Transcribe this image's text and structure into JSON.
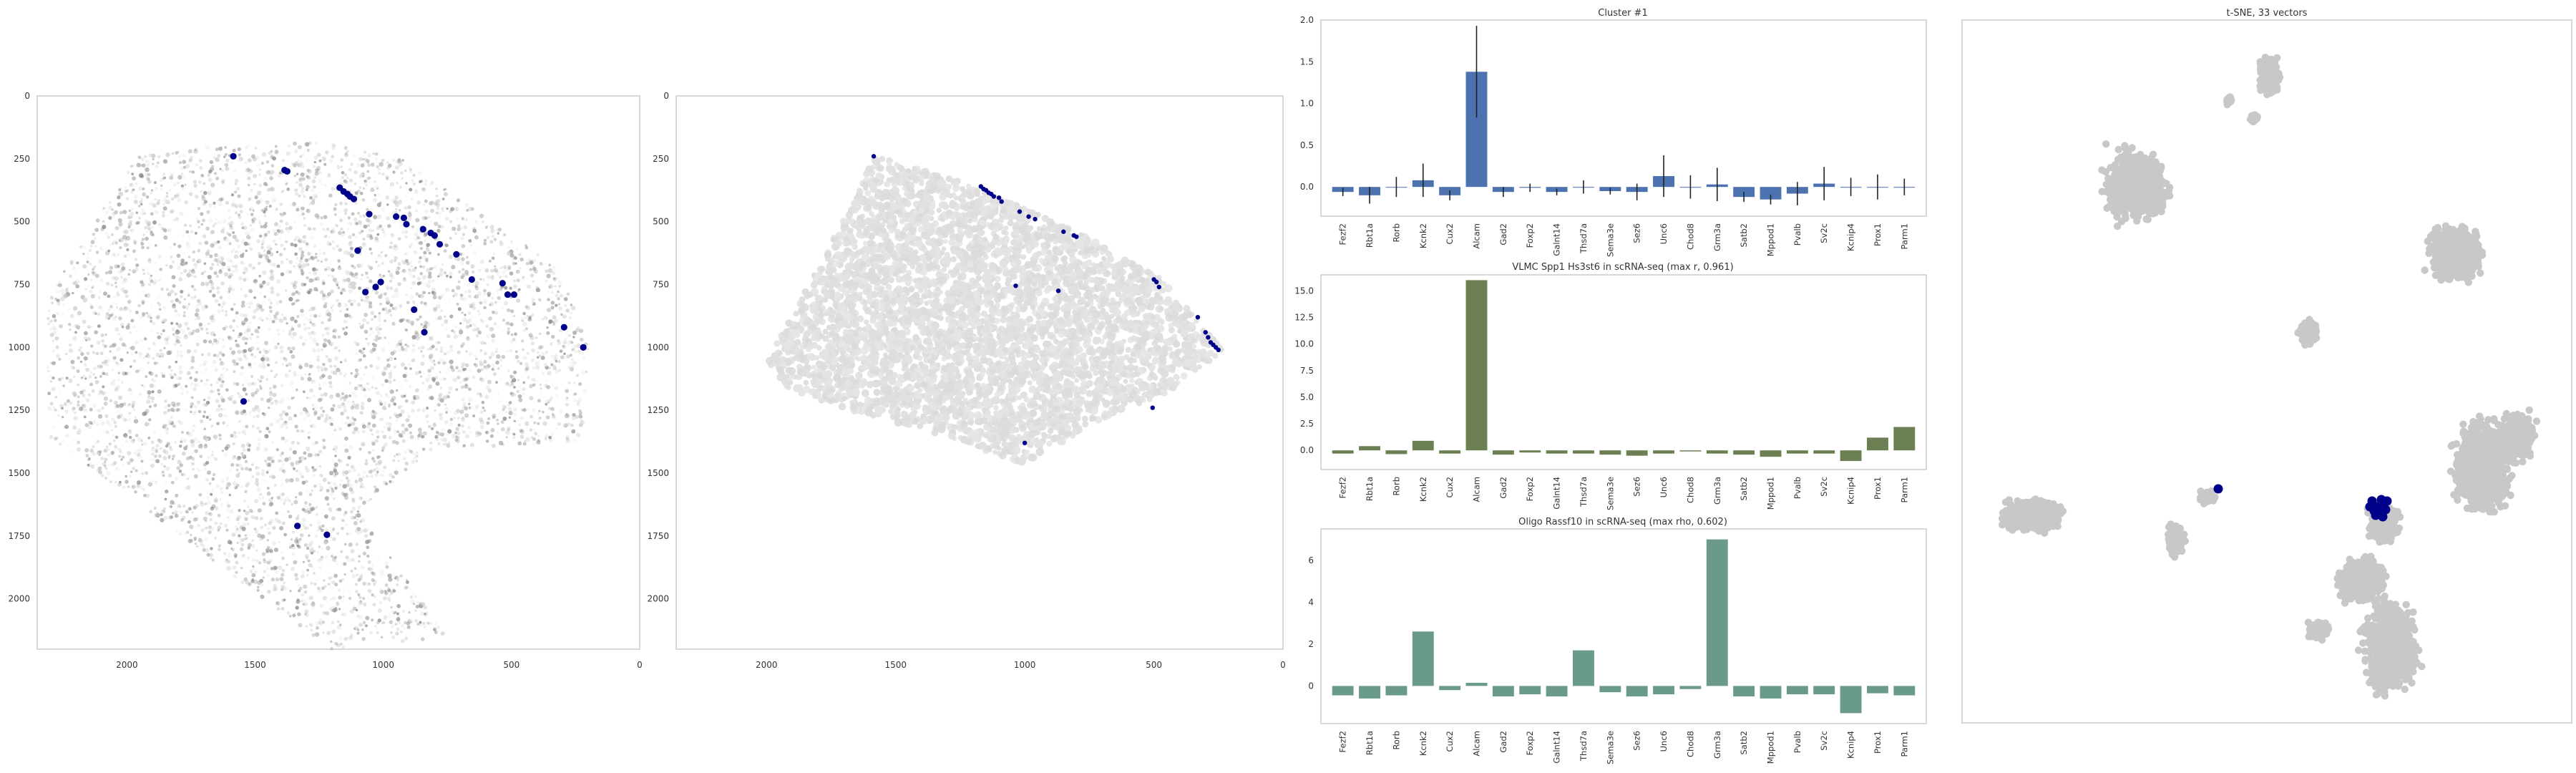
{
  "colors": {
    "highlight": "#00008b",
    "bar_cluster": "#4c72b0",
    "bar_vlmc": "#6b7f52",
    "bar_oligo": "#6a9a8a",
    "background_points": "#c8c8c8",
    "frame": "#cccccc"
  },
  "chart_data": [
    {
      "type": "scatter",
      "panel": "spatial-a",
      "title": "",
      "xlim": [
        2350,
        0
      ],
      "ylim": [
        2200,
        0
      ],
      "x_ticks": [
        "2000",
        "1500",
        "1000",
        "500",
        "0"
      ],
      "y_ticks": [
        "0",
        "250",
        "500",
        "750",
        "1000",
        "1250",
        "1500",
        "1750",
        "2000"
      ],
      "grid": false,
      "highlighted_points": {
        "x": [
          1585,
          1385,
          1375,
          1170,
          1155,
          1140,
          1130,
          1115,
          1100,
          1055,
          950,
          920,
          910,
          845,
          815,
          800,
          780,
          715,
          655,
          535,
          515,
          490,
          295,
          220,
          1545,
          1030,
          1010,
          1070,
          840,
          880,
          1335,
          1220
        ],
        "y": [
          240,
          295,
          300,
          365,
          380,
          390,
          400,
          410,
          615,
          470,
          480,
          485,
          510,
          530,
          545,
          555,
          590,
          630,
          730,
          745,
          790,
          790,
          920,
          1000,
          1215,
          760,
          740,
          780,
          940,
          850,
          1710,
          1745
        ]
      }
    },
    {
      "type": "scatter",
      "panel": "spatial-b",
      "title": "",
      "xlim": [
        2350,
        0
      ],
      "ylim": [
        2200,
        0
      ],
      "x_ticks": [
        "2000",
        "1500",
        "1000",
        "500",
        "0"
      ],
      "y_ticks": [
        "0",
        "250",
        "500",
        "750",
        "1000",
        "1250",
        "1500",
        "1750",
        "2000"
      ],
      "grid": false,
      "highlighted_points": {
        "x": [
          1585,
          1170,
          1160,
          1150,
          1140,
          1130,
          1120,
          1100,
          1090,
          1020,
          985,
          960,
          850,
          810,
          800,
          500,
          490,
          480,
          330,
          300,
          290,
          280,
          270,
          260,
          250,
          1035,
          870,
          1000,
          505
        ],
        "y": [
          240,
          360,
          370,
          375,
          385,
          390,
          400,
          405,
          420,
          460,
          480,
          490,
          540,
          555,
          560,
          730,
          740,
          760,
          880,
          940,
          960,
          980,
          990,
          1000,
          1010,
          755,
          775,
          1380,
          1240
        ]
      }
    },
    {
      "type": "bar",
      "title": "Cluster #1",
      "categories": [
        "Fezf2",
        "Rbt1a",
        "Rorb",
        "Kcnk2",
        "Cux2",
        "Alcam",
        "Gad2",
        "Foxp2",
        "Galnt14",
        "Thsd7a",
        "Sema3e",
        "Sez6",
        "Unc6",
        "Chod8",
        "Grm3a",
        "Satb2",
        "Mppod1",
        "Pvalb",
        "Sv2c",
        "Kcnip4",
        "Prox1",
        "Parm1"
      ],
      "values": [
        -0.06,
        -0.1,
        0.0,
        0.08,
        -0.1,
        1.38,
        -0.06,
        -0.01,
        -0.06,
        0.0,
        -0.05,
        -0.06,
        0.13,
        0.0,
        0.03,
        -0.12,
        -0.15,
        -0.08,
        0.04,
        0.0,
        0.0,
        0.0
      ],
      "errors": [
        0.05,
        0.1,
        0.12,
        0.2,
        0.06,
        0.55,
        0.06,
        0.05,
        0.04,
        0.08,
        0.04,
        0.1,
        0.25,
        0.14,
        0.2,
        0.06,
        0.06,
        0.14,
        0.2,
        0.11,
        0.15,
        0.1
      ],
      "ylim": [
        -0.35,
        2.0
      ],
      "y_ticks": [
        "2.0",
        "1.5",
        "1.0",
        "0.5",
        "0.0"
      ],
      "y_tick_values": [
        2.0,
        1.5,
        1.0,
        0.5,
        0.0
      ],
      "grid": false
    },
    {
      "type": "bar",
      "title": "VLMC Spp1 Hs3st6 in scRNA-seq (max r, 0.961)",
      "categories": [
        "Fezf2",
        "Rbt1a",
        "Rorb",
        "Kcnk2",
        "Cux2",
        "Alcam",
        "Gad2",
        "Foxp2",
        "Galnt14",
        "Thsd7a",
        "Sema3e",
        "Sez6",
        "Unc6",
        "Chod8",
        "Grm3a",
        "Satb2",
        "Mppod1",
        "Pvalb",
        "Sv2c",
        "Kcnip4",
        "Prox1",
        "Parm1"
      ],
      "values": [
        -0.3,
        0.4,
        -0.35,
        0.9,
        -0.3,
        16.0,
        -0.4,
        -0.2,
        -0.3,
        -0.3,
        -0.4,
        -0.5,
        -0.3,
        -0.1,
        -0.3,
        -0.4,
        -0.6,
        -0.3,
        -0.3,
        -1.0,
        1.2,
        2.2
      ],
      "ylim": [
        -1.8,
        16.5
      ],
      "y_ticks": [
        "15.0",
        "12.5",
        "10.0",
        "7.5",
        "5.0",
        "2.5",
        "0.0"
      ],
      "y_tick_values": [
        15.0,
        12.5,
        10.0,
        7.5,
        5.0,
        2.5,
        0.0
      ],
      "grid": false
    },
    {
      "type": "bar",
      "title": "Oligo Rassf10 in scRNA-seq (max rho, 0.602)",
      "categories": [
        "Fezf2",
        "Rbt1a",
        "Rorb",
        "Kcnk2",
        "Cux2",
        "Alcam",
        "Gad2",
        "Foxp2",
        "Galnt14",
        "Thsd7a",
        "Sema3e",
        "Sez6",
        "Unc6",
        "Chod8",
        "Grm3a",
        "Satb2",
        "Mppod1",
        "Pvalb",
        "Sv2c",
        "Kcnip4",
        "Prox1",
        "Parm1"
      ],
      "values": [
        -0.45,
        -0.6,
        -0.45,
        2.6,
        -0.2,
        0.15,
        -0.5,
        -0.4,
        -0.5,
        1.7,
        -0.3,
        -0.5,
        -0.4,
        -0.15,
        7.0,
        -0.5,
        -0.6,
        -0.4,
        -0.4,
        -1.3,
        -0.35,
        -0.45
      ],
      "ylim": [
        -1.8,
        7.5
      ],
      "y_ticks": [
        "6",
        "4",
        "2",
        "0"
      ],
      "y_tick_values": [
        6,
        4,
        2,
        0
      ],
      "grid": false
    },
    {
      "type": "scatter",
      "panel": "tsne",
      "title": "t-SNE, 33 vectors",
      "grid": false
    }
  ]
}
